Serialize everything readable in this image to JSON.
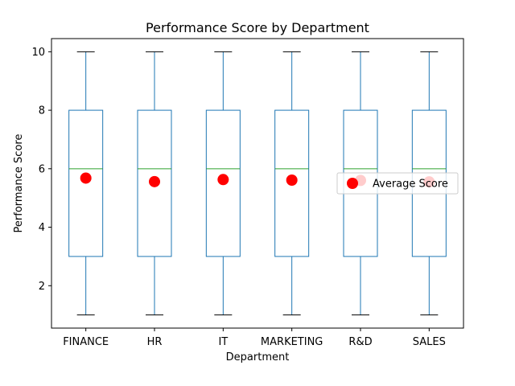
{
  "chart_data": {
    "type": "box",
    "title": "Performance Score by Department",
    "xlabel": "Department",
    "ylabel": "Performance Score",
    "categories": [
      "FINANCE",
      "HR",
      "IT",
      "MARKETING",
      "R&D",
      "SALES"
    ],
    "boxes": [
      {
        "min": 1,
        "q1": 3,
        "median": 6,
        "q3": 8,
        "max": 10
      },
      {
        "min": 1,
        "q1": 3,
        "median": 6,
        "q3": 8,
        "max": 10
      },
      {
        "min": 1,
        "q1": 3,
        "median": 6,
        "q3": 8,
        "max": 10
      },
      {
        "min": 1,
        "q1": 3,
        "median": 6,
        "q3": 8,
        "max": 10
      },
      {
        "min": 1,
        "q1": 3,
        "median": 6,
        "q3": 8,
        "max": 10
      },
      {
        "min": 1,
        "q1": 3,
        "median": 6,
        "q3": 8,
        "max": 10
      }
    ],
    "averages": {
      "name": "Average Score",
      "values": [
        5.68,
        5.56,
        5.63,
        5.61,
        5.6,
        5.55
      ]
    },
    "ylim": [
      0.55,
      10.45
    ],
    "yticks": [
      2,
      4,
      6,
      8,
      10
    ],
    "grid": false,
    "legend": "center-right",
    "colors": {
      "box": "#1f77b4",
      "median": "#2ca02c",
      "average": "#ff0000",
      "cap": "#000000"
    }
  }
}
